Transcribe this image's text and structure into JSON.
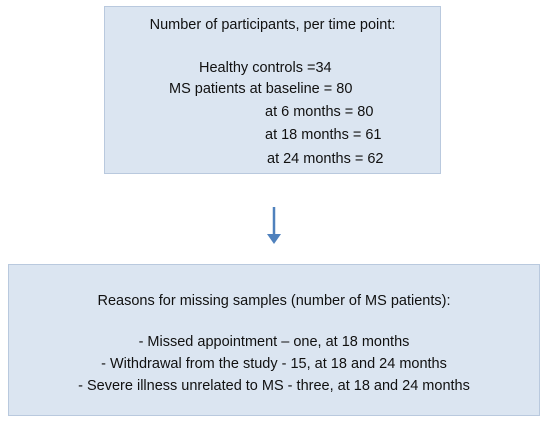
{
  "participants": {
    "title": "Number of participants, per time point:",
    "lines": [
      "Healthy controls =34",
      "MS patients at baseline = 80",
      "at 6 months = 80",
      "at 18 months = 61",
      "at 24 months = 62"
    ]
  },
  "missing": {
    "title": "Reasons for missing samples  (number of MS patients):",
    "lines": [
      "- Missed appointment –  one, at 18 months",
      "- Withdrawal  from the study - 15, at 18 and 24 months",
      "- Severe illness unrelated to MS - three, at 18 and 24 months"
    ]
  },
  "colors": {
    "box_fill": "#dbe5f1",
    "arrow": "#4f81bd"
  }
}
